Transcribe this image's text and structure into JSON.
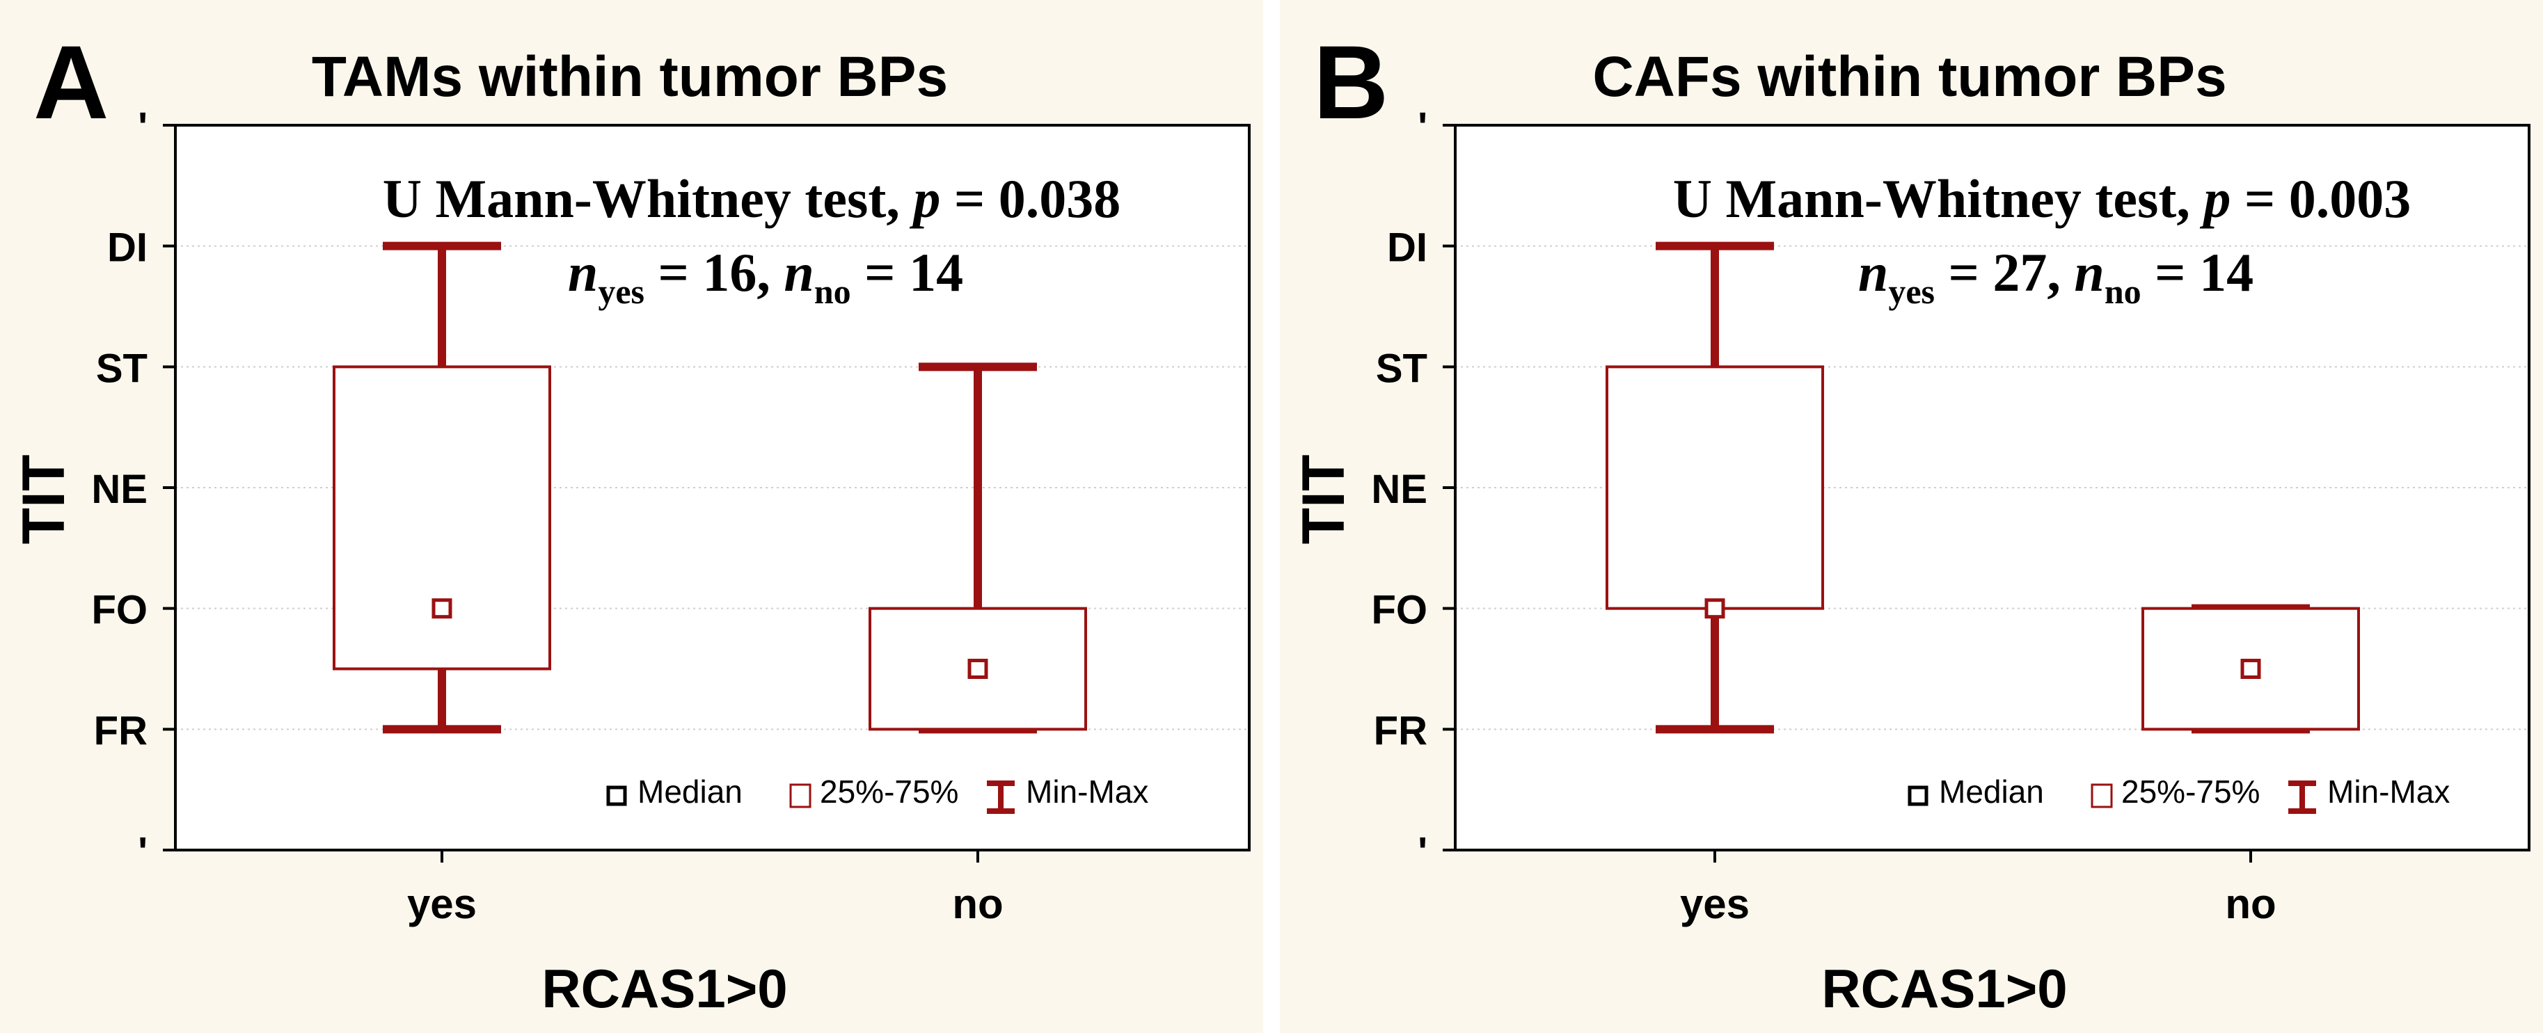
{
  "colors": {
    "panel_bg": "#fbf7ec",
    "plot_bg": "#ffffff",
    "mark": "#9b1111",
    "axis": "#000000",
    "grid": "#cfcfcf"
  },
  "chart_data": [
    {
      "type": "box",
      "panel_letter": "A",
      "title": "TAMs within tumor BPs",
      "xlabel": "RCAS1>0",
      "ylabel": "TIT",
      "categories": [
        "yes",
        "no"
      ],
      "y_levels": [
        "FR",
        "FO",
        "NE",
        "ST",
        "DI"
      ],
      "y_tick_labels": [
        "'",
        "FR",
        "FO",
        "NE",
        "ST",
        "DI",
        "'"
      ],
      "ylim": [
        0,
        6
      ],
      "boxes": [
        {
          "category": "yes",
          "min": 1,
          "q1": 1.5,
          "median": 2,
          "q3": 4,
          "max": 5
        },
        {
          "category": "no",
          "min": 1,
          "q1": 1,
          "median": 1.5,
          "q3": 2,
          "max": 4
        }
      ],
      "annotation": {
        "line1_prefix": "U Mann-Whitney test, ",
        "p_symbol": "p",
        "p_text": " = 0.038",
        "n_symbol": "n",
        "yes_sub": "yes",
        "yes_value": " = 16, ",
        "no_sub": "no",
        "no_value": " = 14"
      },
      "legend": {
        "median": "Median",
        "box": "25%-75%",
        "whisker": "Min-Max"
      }
    },
    {
      "type": "box",
      "panel_letter": "B",
      "title": "CAFs within tumor BPs",
      "xlabel": "RCAS1>0",
      "ylabel": "TIT",
      "categories": [
        "yes",
        "no"
      ],
      "y_levels": [
        "FR",
        "FO",
        "NE",
        "ST",
        "DI"
      ],
      "y_tick_labels": [
        "'",
        "FR",
        "FO",
        "NE",
        "ST",
        "DI",
        "'"
      ],
      "ylim": [
        0,
        6
      ],
      "boxes": [
        {
          "category": "yes",
          "min": 1,
          "q1": 2,
          "median": 2,
          "q3": 4,
          "max": 5
        },
        {
          "category": "no",
          "min": 1,
          "q1": 1,
          "median": 1.5,
          "q3": 2,
          "max": 2
        }
      ],
      "annotation": {
        "line1_prefix": "U Mann-Whitney test, ",
        "p_symbol": "p",
        "p_text": " = 0.003",
        "n_symbol": "n",
        "yes_sub": "yes",
        "yes_value": " = 27, ",
        "no_sub": "no",
        "no_value": " = 14"
      },
      "legend": {
        "median": "Median",
        "box": "25%-75%",
        "whisker": "Min-Max"
      }
    }
  ]
}
